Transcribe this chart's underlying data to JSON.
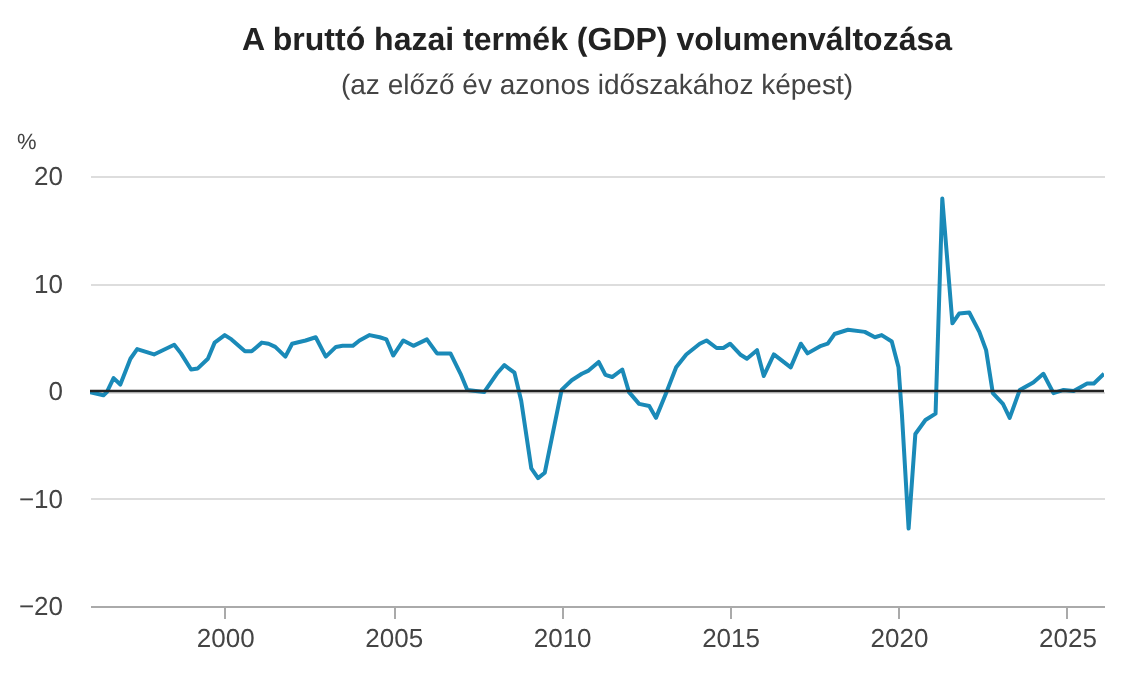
{
  "chart_data": {
    "type": "line",
    "title": "A bruttó hazai termék (GDP) volumenváltozása",
    "subtitle": "(az előző év azonos időszakához képest)",
    "ylabel": "%",
    "xlim": [
      1996,
      2026.1
    ],
    "xticks": [
      2000,
      2005,
      2010,
      2015,
      2020,
      2025
    ],
    "ylim": [
      -20,
      20
    ],
    "yticks": [
      -20,
      -10,
      0,
      10,
      20
    ],
    "grid": "y",
    "ref_lines": [
      {
        "axis": "y",
        "value": 0,
        "color": "#222222"
      }
    ],
    "series": [
      {
        "color": "#1a8ab8",
        "x": [
          1996.0,
          1996.4,
          1996.5,
          1996.7,
          1996.9,
          1997.2,
          1997.4,
          1997.9,
          1998.5,
          1998.7,
          1999.0,
          1999.2,
          1999.5,
          1999.7,
          2000.0,
          2000.2,
          2000.6,
          2000.8,
          2001.1,
          2001.3,
          2001.5,
          2001.8,
          2002.0,
          2002.4,
          2002.7,
          2003.0,
          2003.3,
          2003.5,
          2003.8,
          2004.0,
          2004.3,
          2004.6,
          2004.8,
          2005.0,
          2005.3,
          2005.6,
          2006.0,
          2006.3,
          2006.7,
          2007.0,
          2007.2,
          2007.7,
          2008.1,
          2008.3,
          2008.6,
          2008.8,
          2009.1,
          2009.3,
          2009.5,
          2010.0,
          2010.3,
          2010.6,
          2010.8,
          2011.1,
          2011.3,
          2011.5,
          2011.8,
          2012.0,
          2012.3,
          2012.6,
          2012.8,
          2013.1,
          2013.4,
          2013.7,
          2014.1,
          2014.3,
          2014.6,
          2014.8,
          2015.0,
          2015.3,
          2015.5,
          2015.8,
          2016.0,
          2016.3,
          2016.8,
          2017.1,
          2017.3,
          2017.7,
          2017.9,
          2018.1,
          2018.5,
          2019.0,
          2019.3,
          2019.5,
          2019.8,
          2020.0,
          2020.1,
          2020.3,
          2020.5,
          2020.8,
          2021.1,
          2021.3,
          2021.6,
          2021.8,
          2022.1,
          2022.4,
          2022.6,
          2022.8,
          2023.1,
          2023.3,
          2023.6,
          2024.0,
          2024.3,
          2024.6,
          2024.9,
          2025.2,
          2025.6,
          2025.8,
          2026.1
        ],
        "values": [
          -0.1,
          -0.4,
          -0.1,
          1.2,
          0.6,
          3.0,
          3.9,
          3.4,
          4.3,
          3.5,
          2.0,
          2.1,
          3.0,
          4.5,
          5.2,
          4.8,
          3.7,
          3.7,
          4.5,
          4.4,
          4.1,
          3.2,
          4.4,
          4.7,
          5.0,
          3.2,
          4.1,
          4.2,
          4.2,
          4.7,
          5.2,
          5.0,
          4.8,
          3.3,
          4.7,
          4.2,
          4.8,
          3.5,
          3.5,
          1.6,
          0.1,
          -0.1,
          1.7,
          2.4,
          1.7,
          -0.9,
          -7.2,
          -8.1,
          -7.6,
          0.1,
          1.0,
          1.6,
          1.9,
          2.7,
          1.5,
          1.3,
          2.0,
          -0.1,
          -1.2,
          -1.4,
          -2.5,
          -0.2,
          2.2,
          3.4,
          4.4,
          4.7,
          4.0,
          4.0,
          4.4,
          3.4,
          3.0,
          3.8,
          1.4,
          3.4,
          2.2,
          4.4,
          3.5,
          4.2,
          4.4,
          5.3,
          5.7,
          5.5,
          5.0,
          5.2,
          4.6,
          2.2,
          -2.1,
          -12.8,
          -4.0,
          -2.7,
          -2.1,
          17.9,
          6.3,
          7.2,
          7.3,
          5.5,
          3.8,
          -0.2,
          -1.2,
          -2.5,
          0.1,
          0.8,
          1.6,
          -0.2,
          0.1,
          0.0,
          0.7,
          0.7,
          1.6
        ]
      }
    ]
  }
}
